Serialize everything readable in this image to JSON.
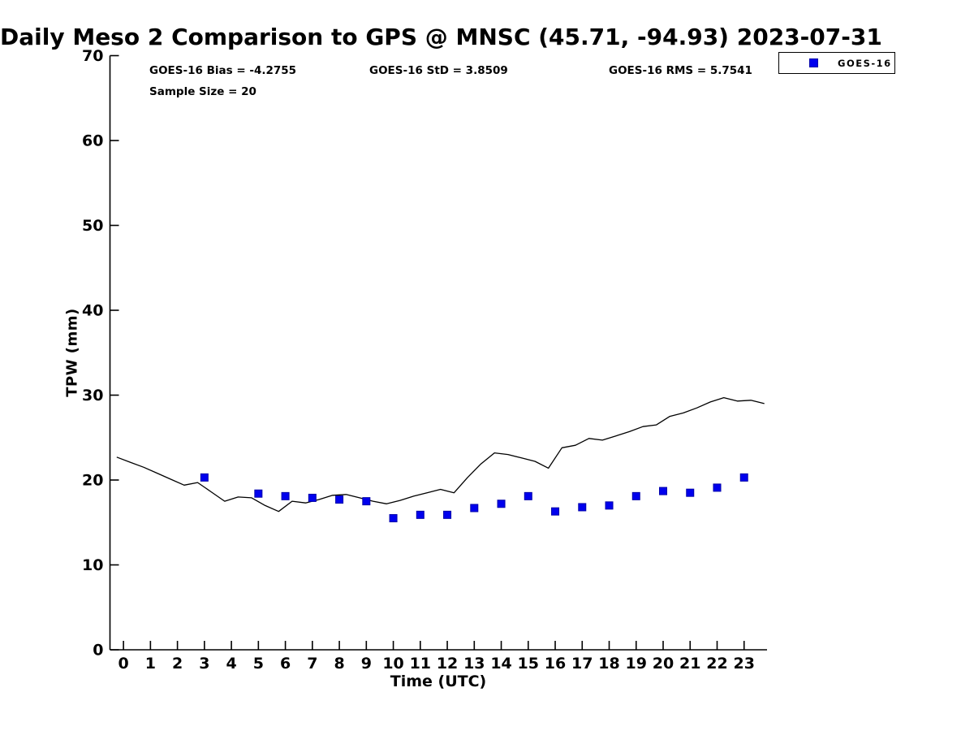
{
  "chart_data": {
    "type": "line",
    "title": "Daily Meso 2 Comparison to GPS @ MNSC (45.71, -94.93) 2023-07-31",
    "xlabel": "Time (UTC)",
    "ylabel": "TPW (mm)",
    "xlim": [
      -0.5,
      23.85
    ],
    "ylim": [
      0,
      70
    ],
    "xticks": [
      0,
      1,
      2,
      3,
      4,
      5,
      6,
      7,
      8,
      9,
      10,
      11,
      12,
      13,
      14,
      15,
      16,
      17,
      18,
      19,
      20,
      21,
      22,
      23
    ],
    "yticks": [
      0,
      10,
      20,
      30,
      40,
      50,
      60,
      70
    ],
    "grid": false,
    "legend_position": "top-right",
    "annotations": {
      "bias": "GOES-16 Bias = -4.2755",
      "std": "GOES-16 StD = 3.8509",
      "rms": "GOES-16 RMS = 5.7541",
      "sample_size": "Sample Size = 20"
    },
    "legend": {
      "entries": [
        {
          "label": "GOES-16",
          "marker": "square",
          "color": "#0000EE"
        }
      ]
    },
    "colors": {
      "gps_line": "#000000",
      "goes_marker_fill": "#0000EE",
      "goes_marker_edge": "#0000AA",
      "axis": "#000000"
    },
    "series": [
      {
        "name": "GPS",
        "type": "line",
        "color": "#000000",
        "x": [
          -0.25,
          0.25,
          0.75,
          1.25,
          1.75,
          2.25,
          2.75,
          3.25,
          3.75,
          4.25,
          4.75,
          5.25,
          5.75,
          6.25,
          6.75,
          7.25,
          7.75,
          8.25,
          8.75,
          9.25,
          9.75,
          10.25,
          10.75,
          11.25,
          11.75,
          12.25,
          12.75,
          13.25,
          13.75,
          14.25,
          14.75,
          15.25,
          15.75,
          16.25,
          16.75,
          17.25,
          17.75,
          18.25,
          18.75,
          19.25,
          19.75,
          20.25,
          20.75,
          21.25,
          21.75,
          22.25,
          22.75,
          23.25,
          23.75
        ],
        "y": [
          22.7,
          22.1,
          21.5,
          20.8,
          20.1,
          19.4,
          19.7,
          18.6,
          17.5,
          18.0,
          17.9,
          17.0,
          16.3,
          17.5,
          17.3,
          17.7,
          18.2,
          18.3,
          17.9,
          17.5,
          17.2,
          17.6,
          18.1,
          18.5,
          18.9,
          18.5,
          20.3,
          21.9,
          23.2,
          23.0,
          22.6,
          22.2,
          21.4,
          23.8,
          24.1,
          24.9,
          24.7,
          25.2,
          25.7,
          26.3,
          26.5,
          27.5,
          27.9,
          28.5,
          29.2,
          29.7,
          29.3,
          29.4,
          29.0
        ]
      },
      {
        "name": "GOES-16",
        "type": "scatter",
        "marker": "square",
        "color": "#0000EE",
        "x": [
          3,
          5,
          6,
          7,
          8,
          9,
          10,
          11,
          12,
          13,
          14,
          15,
          16,
          17,
          18,
          19,
          20,
          21,
          22,
          23
        ],
        "y": [
          20.3,
          18.4,
          18.1,
          17.9,
          17.7,
          17.5,
          15.5,
          15.9,
          15.9,
          16.7,
          17.2,
          18.1,
          16.3,
          16.8,
          17.0,
          18.1,
          18.7,
          18.5,
          19.1,
          20.3
        ]
      }
    ]
  }
}
